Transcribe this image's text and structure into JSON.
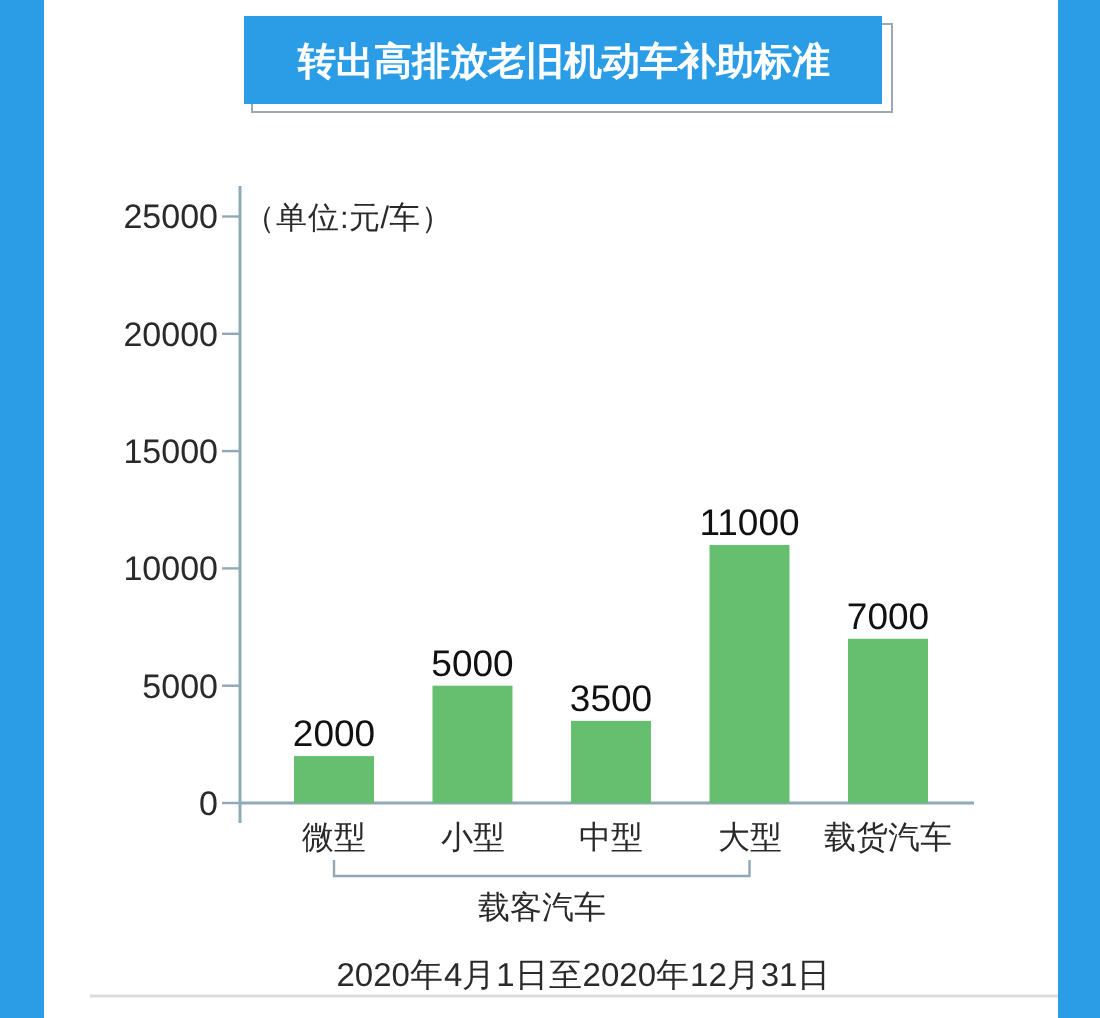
{
  "chart_data": {
    "type": "bar",
    "title": "转出高排放老旧机动车补助标准",
    "ylabel": "（单位:元/车）",
    "categories": [
      "微型",
      "小型",
      "中型",
      "大型",
      "载货汽车"
    ],
    "values": [
      2000,
      5000,
      3500,
      11000,
      7000
    ],
    "color": "#66bf6e",
    "ylim": [
      0,
      26300
    ],
    "yticks": [
      0,
      5000,
      10000,
      15000,
      20000,
      25000
    ],
    "data_labels": true,
    "annotations": [
      "载客汽车",
      "2020年4月1日至2020年12月31日"
    ]
  }
}
